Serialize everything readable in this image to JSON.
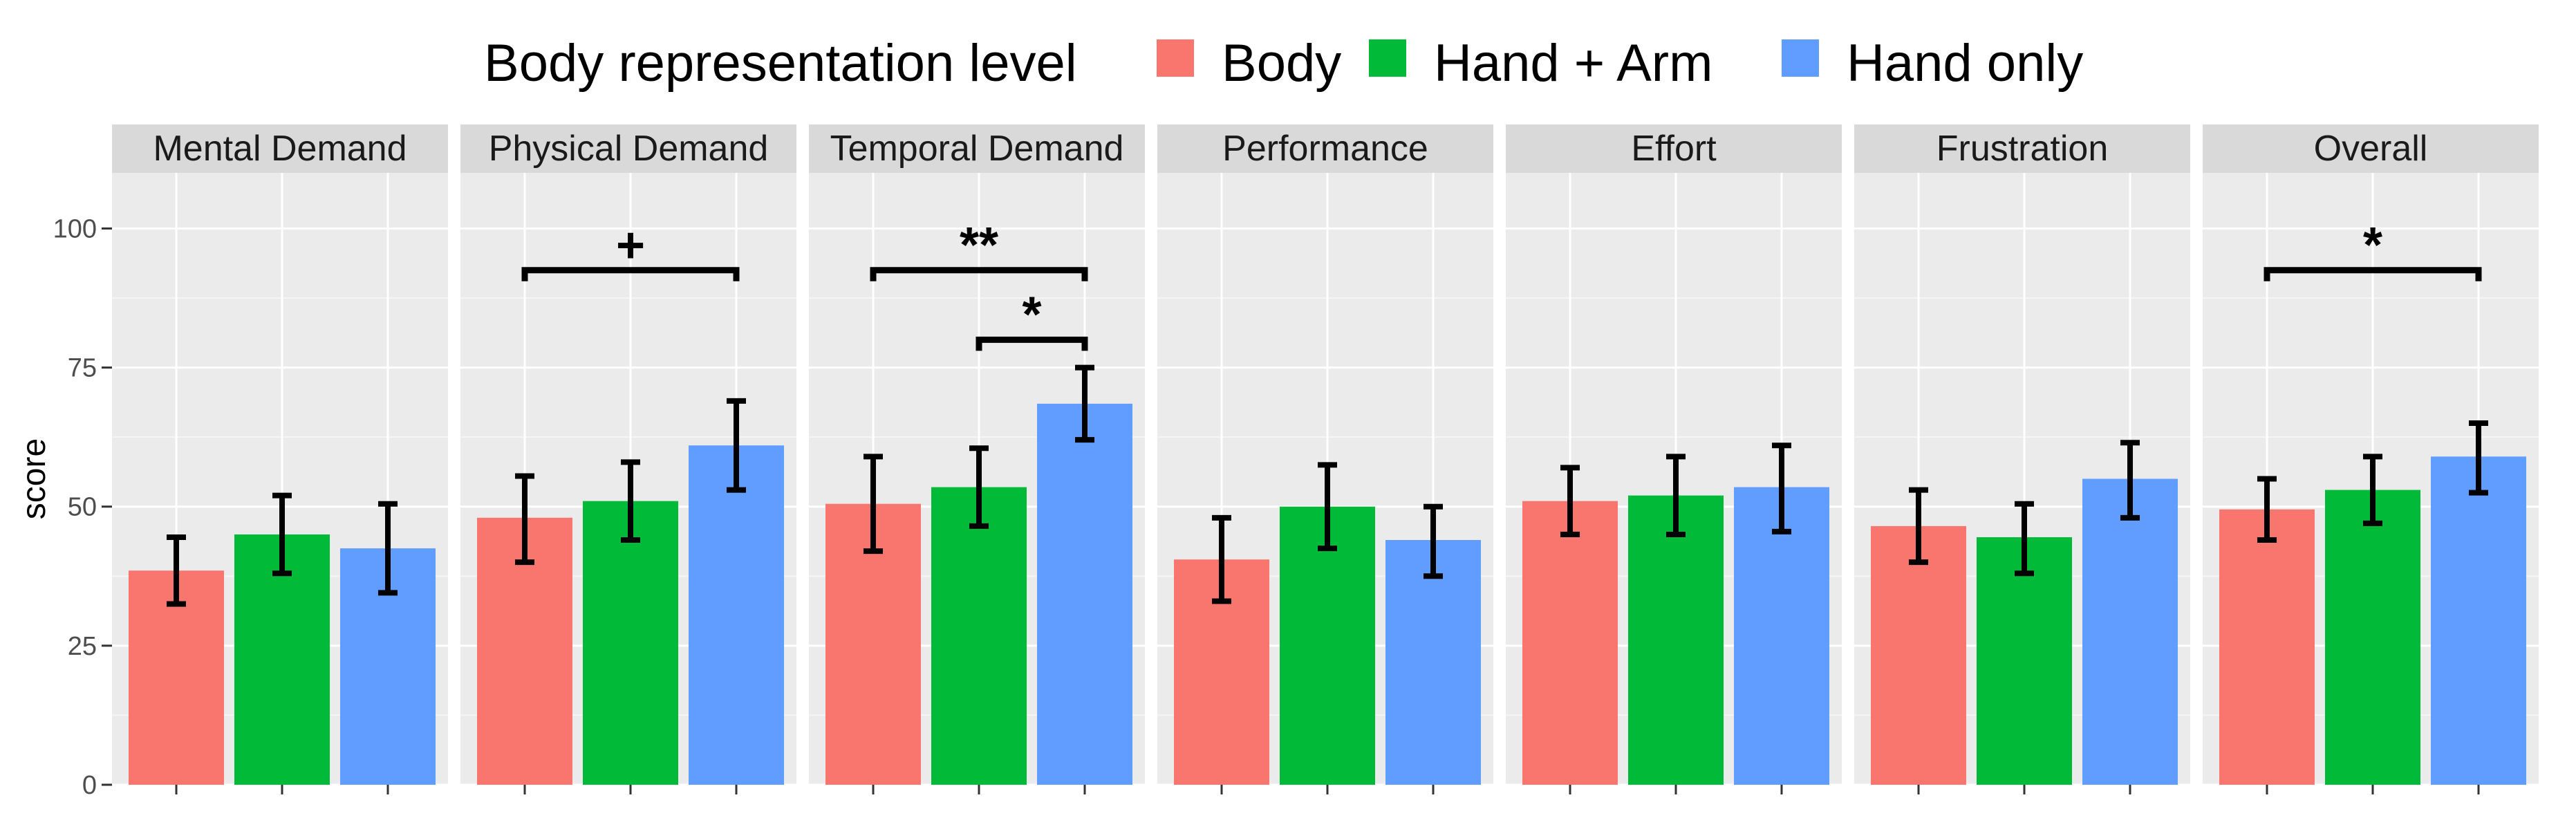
{
  "chart_data": {
    "type": "bar",
    "legend": {
      "title": "Body representation level",
      "position": "top",
      "entries": [
        {
          "name": "Body",
          "color": "#F8766D"
        },
        {
          "name": "Hand + Arm",
          "color": "#00BA38"
        },
        {
          "name": "Hand only",
          "color": "#619CFF"
        }
      ]
    },
    "ylabel": "score",
    "ylim": [
      0,
      110
    ],
    "yticks": [
      0,
      25,
      50,
      75,
      100
    ],
    "grid": true,
    "background": "#EBEBEB",
    "strip_background": "#D9D9D9",
    "panels": [
      {
        "label": "Mental Demand",
        "values": [
          38.5,
          45,
          42.5
        ],
        "err_low": [
          32.5,
          38,
          34.5
        ],
        "err_high": [
          44.5,
          52,
          50.5
        ],
        "significance": []
      },
      {
        "label": "Physical Demand",
        "values": [
          48,
          51,
          61
        ],
        "err_low": [
          40,
          44,
          53
        ],
        "err_high": [
          55.5,
          58,
          69
        ],
        "significance": [
          {
            "from": 0,
            "to": 2,
            "y": 92.5,
            "label": "+"
          }
        ]
      },
      {
        "label": "Temporal Demand",
        "values": [
          50.5,
          53.5,
          68.5
        ],
        "err_low": [
          42,
          46.5,
          62
        ],
        "err_high": [
          59,
          60.5,
          75
        ],
        "significance": [
          {
            "from": 0,
            "to": 2,
            "y": 92.5,
            "label": "**"
          },
          {
            "from": 1,
            "to": 2,
            "y": 80,
            "label": "*"
          }
        ]
      },
      {
        "label": "Performance",
        "values": [
          40.5,
          50,
          44
        ],
        "err_low": [
          33,
          42.5,
          37.5
        ],
        "err_high": [
          48,
          57.5,
          50
        ]
      },
      {
        "label": "Effort",
        "values": [
          51,
          52,
          53.5
        ],
        "err_low": [
          45,
          45,
          45.5
        ],
        "err_high": [
          57,
          59,
          61
        ]
      },
      {
        "label": "Frustration",
        "values": [
          46.5,
          44.5,
          55
        ],
        "err_low": [
          40,
          38,
          48
        ],
        "err_high": [
          53,
          50.5,
          61.5
        ],
        "significance": []
      },
      {
        "label": "Overall",
        "values": [
          49.5,
          53,
          59
        ],
        "err_low": [
          44,
          47,
          52.5
        ],
        "err_high": [
          55,
          59,
          65
        ],
        "significance": [
          {
            "from": 0,
            "to": 2,
            "y": 92.5,
            "label": "*"
          }
        ]
      }
    ]
  }
}
